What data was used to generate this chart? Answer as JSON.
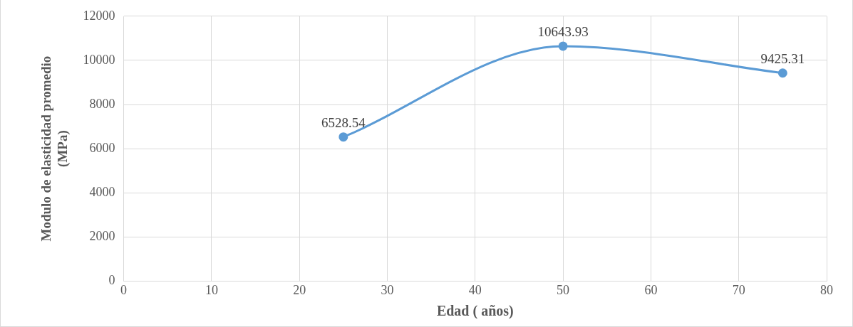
{
  "chart_data": {
    "type": "line",
    "xlabel": "Edad ( años)",
    "ylabel": "Modulo de elasticidad promedio (MPa)",
    "x": [
      25,
      50,
      75
    ],
    "series": [
      {
        "color": "#5b9bd5",
        "values": [
          6528.54,
          10643.93,
          9425.31
        ]
      }
    ],
    "xlim": [
      0,
      80
    ],
    "xticks": [
      0,
      10,
      20,
      30,
      40,
      50,
      60,
      70,
      80
    ],
    "ylim": [
      0,
      12000
    ],
    "yticks": [
      0,
      2000,
      4000,
      6000,
      8000,
      10000,
      12000
    ],
    "grid": true,
    "legend": false,
    "marker": "circle",
    "line_style": "solid",
    "data_labels": true
  }
}
